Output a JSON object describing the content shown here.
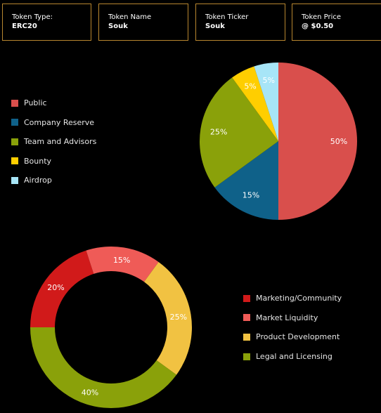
{
  "token_info": [
    {
      "label": "Token Type:",
      "value": "ERC20"
    },
    {
      "label": "Token Name",
      "value": "Souk"
    },
    {
      "label": "Token Ticker",
      "value": "Souk"
    },
    {
      "label": "Token Price",
      "value": "@ $0.50"
    }
  ],
  "chart_data": [
    {
      "type": "pie",
      "categories": [
        "Public",
        "Company Reserve",
        "Team and Advisors",
        "Bounty",
        "Airdrop"
      ],
      "values": [
        50,
        15,
        25,
        5,
        5
      ],
      "value_labels": [
        "50%",
        "15%",
        "25%",
        "5%",
        "5%"
      ],
      "colors": [
        "#d94f4c",
        "#0f6189",
        "#8aa10a",
        "#ffce00",
        "#a7e5f7"
      ],
      "legend_placement": "left"
    },
    {
      "type": "donut",
      "categories": [
        "Marketing/Community",
        "Market Liquidity",
        "Product Development",
        "Legal and Licensing"
      ],
      "values": [
        20,
        15,
        25,
        40
      ],
      "value_labels": [
        "20%",
        "15%",
        "25%",
        "40%"
      ],
      "colors": [
        "#d11a1a",
        "#ef5b57",
        "#f1c242",
        "#8aa10a"
      ],
      "legend_placement": "right"
    }
  ]
}
